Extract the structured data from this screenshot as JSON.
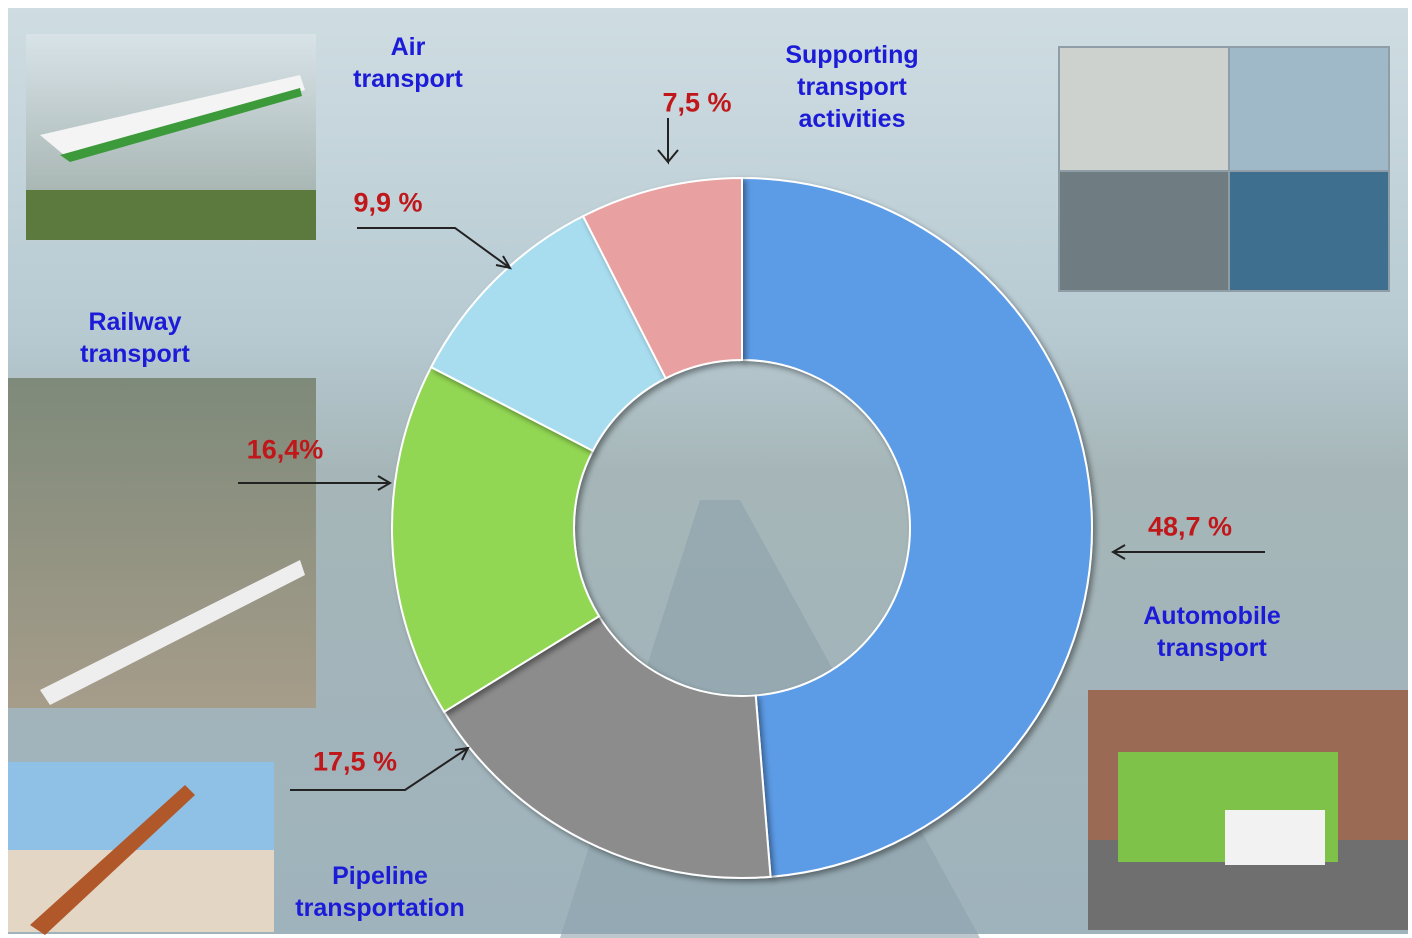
{
  "chart_data": {
    "type": "donut",
    "categories": [
      "Automobile transport",
      "Pipeline transportation",
      "Railway transport",
      "Air transport",
      "Supporting transport activities"
    ],
    "values": [
      48.7,
      17.5,
      16.4,
      9.9,
      7.5
    ],
    "value_labels": [
      "48,7 %",
      "17,5 %",
      "16,4%",
      "9,9 %",
      "7,5 %"
    ],
    "colors": [
      "#5b9be6",
      "#8c8c8c",
      "#92d752",
      "#a8dcef",
      "#e9a0a0"
    ]
  }
}
